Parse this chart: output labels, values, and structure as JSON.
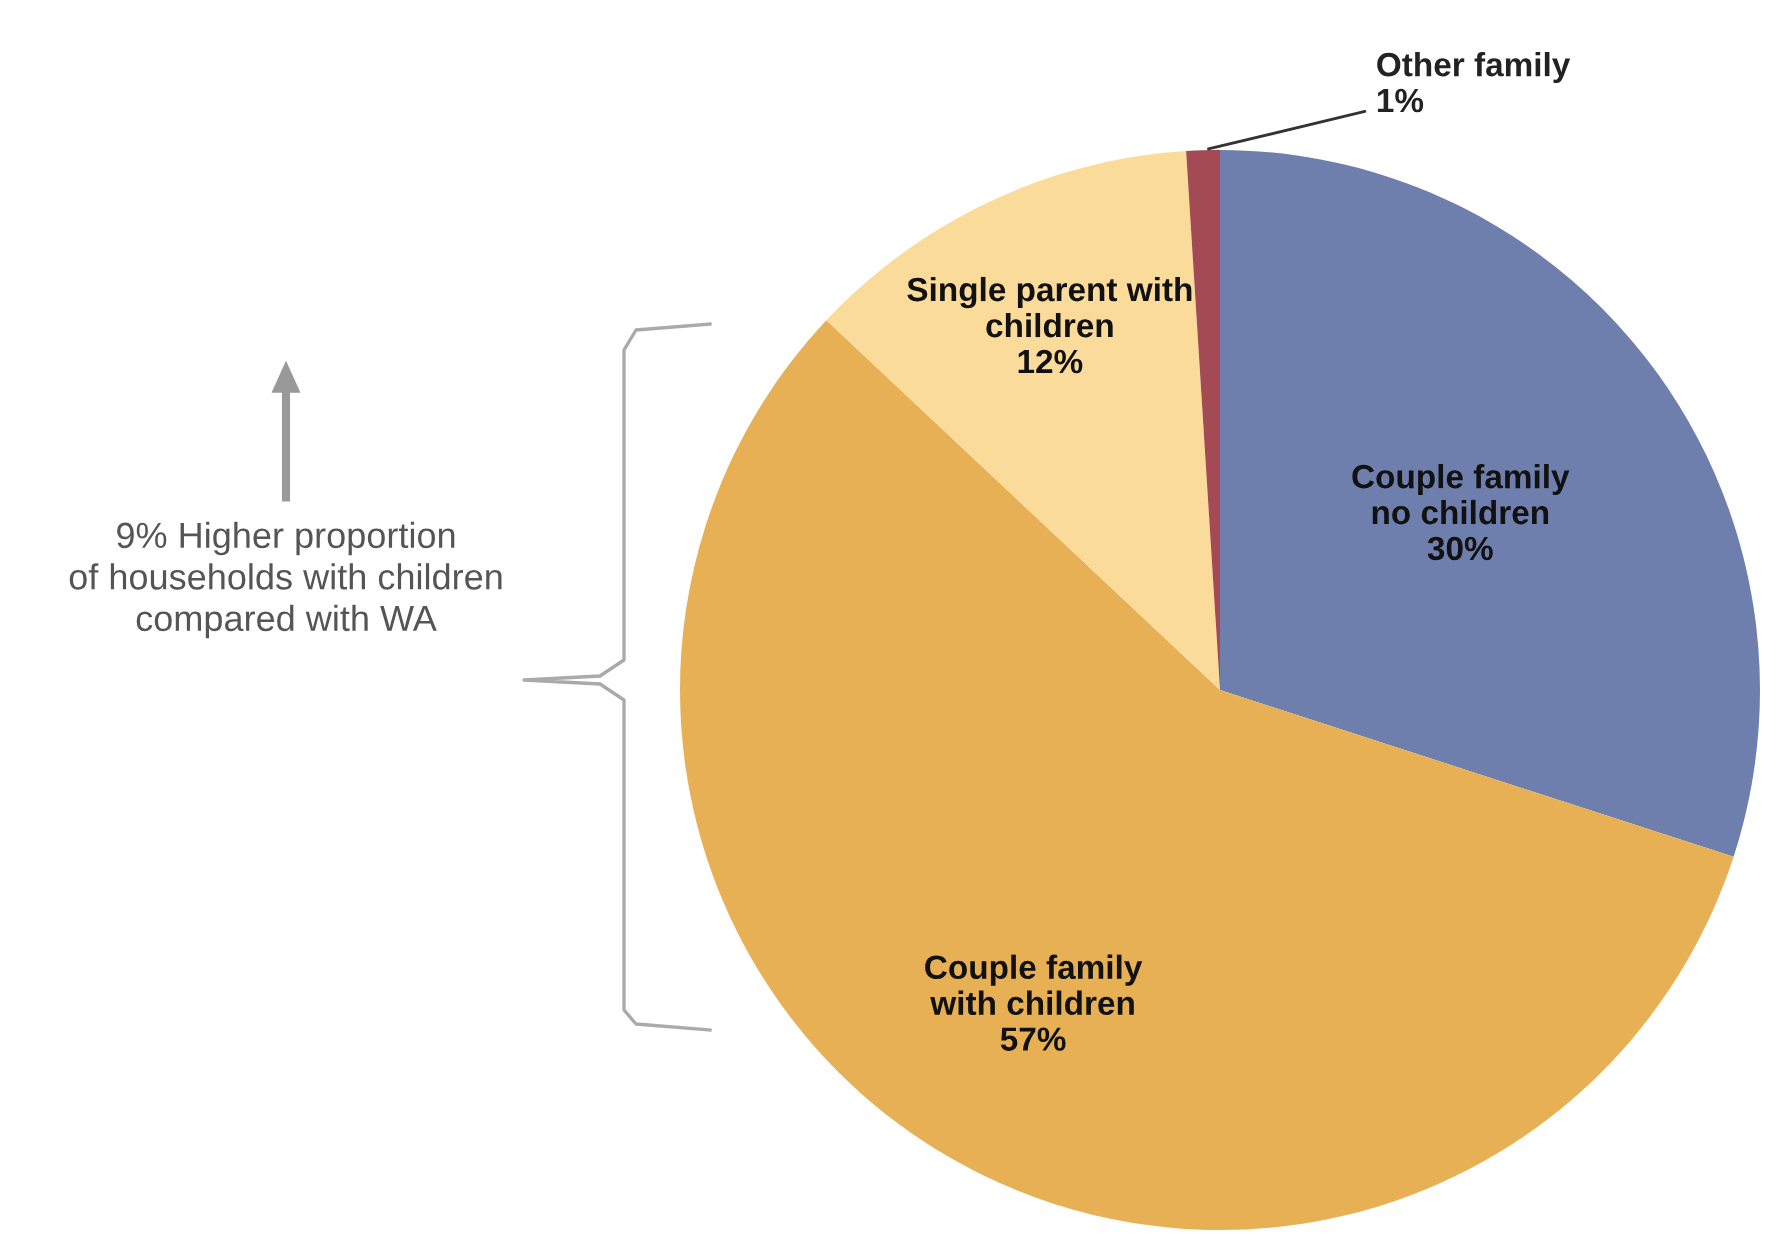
{
  "chart_data": {
    "type": "pie",
    "categories": [
      "Couple family\nno children",
      "Couple family\nwith children",
      "Single parent with\nchildren",
      "Other family"
    ],
    "values": [
      30,
      57,
      12,
      1
    ],
    "value_labels": [
      "30%",
      "57%",
      "12%",
      "1%"
    ],
    "colors": [
      "#6f7fad",
      "#e8b055",
      "#fbdb9a",
      "#a34a55"
    ],
    "annotations": [
      "9% Higher proportion\nof households with children\ncompared with WA"
    ]
  }
}
